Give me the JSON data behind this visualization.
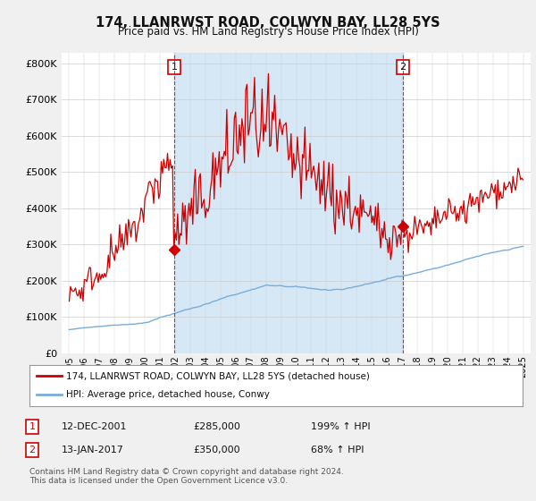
{
  "title": "174, LLANRWST ROAD, COLWYN BAY, LL28 5YS",
  "subtitle": "Price paid vs. HM Land Registry's House Price Index (HPI)",
  "ylabel_ticks": [
    "£0",
    "£100K",
    "£200K",
    "£300K",
    "£400K",
    "£500K",
    "£600K",
    "£700K",
    "£800K"
  ],
  "ytick_values": [
    0,
    100000,
    200000,
    300000,
    400000,
    500000,
    600000,
    700000,
    800000
  ],
  "ylim": [
    0,
    830000
  ],
  "sale1_price": 285000,
  "sale2_price": 350000,
  "hpi_color": "#7aaddb",
  "price_color": "#cc0000",
  "vline_color": "#cc0000",
  "shade_color": "#d6e8f5",
  "legend_label_price": "174, LLANRWST ROAD, COLWYN BAY, LL28 5YS (detached house)",
  "legend_label_hpi": "HPI: Average price, detached house, Conwy",
  "annotation1_date": "12-DEC-2001",
  "annotation1_price": "£285,000",
  "annotation1_pct": "199% ↑ HPI",
  "annotation2_date": "13-JAN-2017",
  "annotation2_price": "£350,000",
  "annotation2_pct": "68% ↑ HPI",
  "footnote": "Contains HM Land Registry data © Crown copyright and database right 2024.\nThis data is licensed under the Open Government Licence v3.0.",
  "background_color": "#f0f0f0",
  "plot_bg_color": "#ffffff"
}
